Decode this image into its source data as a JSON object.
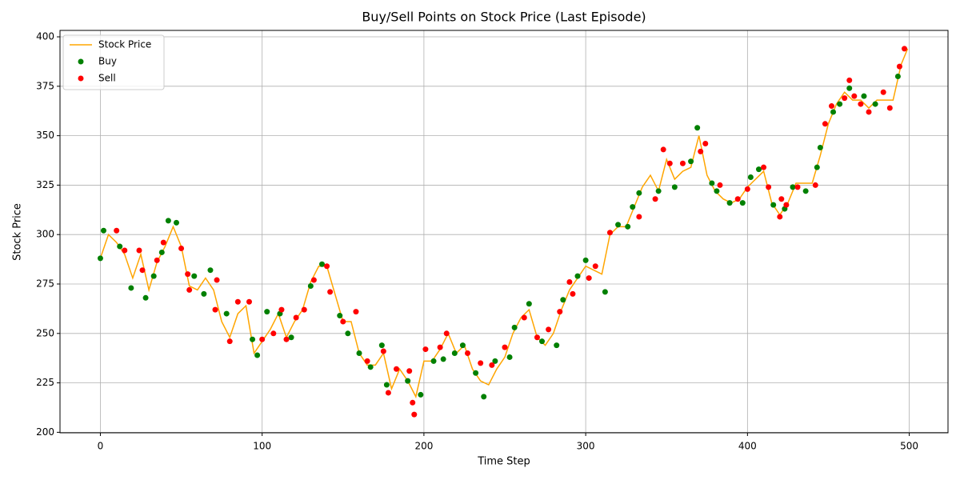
{
  "chart_data": {
    "type": "line",
    "title": "Buy/Sell Points on Stock Price (Last Episode)",
    "xlabel": "Time Step",
    "ylabel": "Stock Price",
    "xlim": [
      -24.95,
      523.95
    ],
    "ylim": [
      199.75,
      403.25
    ],
    "xticks": [
      0,
      100,
      200,
      300,
      400,
      500
    ],
    "yticks": [
      200,
      225,
      250,
      275,
      300,
      325,
      350,
      375,
      400
    ],
    "grid": true,
    "legend": "upper left",
    "series": [
      {
        "name": "Stock Price",
        "type": "line",
        "color": "#ffa500",
        "x": [
          0,
          5,
          10,
          15,
          20,
          25,
          30,
          35,
          40,
          45,
          50,
          55,
          60,
          65,
          70,
          75,
          80,
          85,
          90,
          95,
          100,
          105,
          110,
          115,
          120,
          125,
          130,
          135,
          140,
          145,
          150,
          155,
          160,
          165,
          170,
          175,
          180,
          185,
          190,
          195,
          200,
          205,
          210,
          215,
          220,
          225,
          230,
          235,
          240,
          245,
          250,
          255,
          260,
          265,
          270,
          275,
          280,
          285,
          290,
          295,
          300,
          305,
          310,
          315,
          320,
          325,
          330,
          335,
          340,
          345,
          350,
          355,
          360,
          365,
          370,
          375,
          380,
          385,
          390,
          395,
          400,
          405,
          410,
          415,
          420,
          425,
          430,
          435,
          440,
          445,
          450,
          455,
          460,
          465,
          470,
          475,
          480,
          485,
          490,
          495,
          499
        ],
        "values": [
          288,
          300,
          296,
          290,
          278,
          290,
          272,
          286,
          294,
          304,
          294,
          274,
          272,
          278,
          272,
          256,
          248,
          260,
          264,
          240,
          246,
          252,
          260,
          248,
          256,
          262,
          276,
          284,
          284,
          270,
          256,
          256,
          240,
          234,
          234,
          240,
          222,
          232,
          226,
          218,
          236,
          236,
          242,
          250,
          240,
          244,
          232,
          226,
          224,
          232,
          238,
          250,
          258,
          262,
          248,
          244,
          250,
          262,
          272,
          278,
          284,
          282,
          280,
          300,
          304,
          304,
          314,
          324,
          330,
          322,
          338,
          328,
          332,
          334,
          350,
          330,
          322,
          318,
          316,
          318,
          324,
          328,
          332,
          316,
          310,
          316,
          326,
          326,
          326,
          340,
          356,
          366,
          372,
          368,
          368,
          364,
          368,
          368,
          368,
          386,
          394
        ]
      },
      {
        "name": "Buy",
        "type": "scatter",
        "color": "#008000",
        "x": [
          0,
          2,
          12,
          19,
          28,
          33,
          38,
          42,
          47,
          58,
          64,
          68,
          78,
          94,
          97,
          103,
          111,
          118,
          130,
          137,
          148,
          153,
          160,
          167,
          174,
          177,
          190,
          198,
          206,
          212,
          219,
          224,
          232,
          237,
          244,
          253,
          256,
          265,
          273,
          282,
          286,
          295,
          300,
          312,
          320,
          326,
          329,
          333,
          345,
          355,
          365,
          369,
          378,
          381,
          389,
          397,
          402,
          407,
          416,
          423,
          428,
          436,
          443,
          445,
          453,
          457,
          463,
          472,
          479,
          493
        ],
        "values": [
          288,
          302,
          294,
          273,
          268,
          279,
          291,
          307,
          306,
          279,
          270,
          282,
          260,
          247,
          239,
          261,
          260,
          248,
          274,
          285,
          259,
          250,
          240,
          233,
          244,
          224,
          226,
          219,
          236,
          237,
          240,
          244,
          230,
          218,
          236,
          238,
          253,
          265,
          246,
          244,
          267,
          279,
          287,
          271,
          305,
          304,
          314,
          321,
          322,
          324,
          337,
          354,
          326,
          322,
          316,
          316,
          329,
          333,
          315,
          313,
          324,
          322,
          334,
          344,
          362,
          366,
          374,
          370,
          366,
          380
        ]
      },
      {
        "name": "Sell",
        "type": "scatter",
        "color": "#ff0000",
        "x": [
          10,
          15,
          24,
          26,
          35,
          39,
          50,
          54,
          55,
          71,
          72,
          80,
          85,
          92,
          100,
          107,
          112,
          115,
          121,
          126,
          132,
          140,
          142,
          150,
          158,
          165,
          175,
          178,
          183,
          191,
          193,
          194,
          201,
          210,
          214,
          227,
          235,
          242,
          250,
          262,
          270,
          277,
          284,
          290,
          292,
          302,
          306,
          315,
          333,
          343,
          348,
          352,
          360,
          371,
          374,
          383,
          394,
          400,
          410,
          413,
          420,
          421,
          424,
          431,
          442,
          448,
          452,
          460,
          463,
          466,
          470,
          475,
          484,
          488,
          494,
          497
        ],
        "values": [
          302,
          292,
          292,
          282,
          287,
          296,
          293,
          280,
          272,
          262,
          277,
          246,
          266,
          266,
          247,
          250,
          262,
          247,
          258,
          262,
          277,
          284,
          271,
          256,
          261,
          236,
          241,
          220,
          232,
          231,
          215,
          209,
          242,
          243,
          250,
          240,
          235,
          234,
          243,
          258,
          248,
          252,
          261,
          276,
          270,
          278,
          284,
          301,
          309,
          318,
          343,
          336,
          336,
          342,
          346,
          325,
          318,
          323,
          334,
          324,
          309,
          318,
          315,
          324,
          325,
          356,
          365,
          369,
          378,
          370,
          366,
          362,
          372,
          364,
          385,
          394
        ]
      }
    ]
  }
}
